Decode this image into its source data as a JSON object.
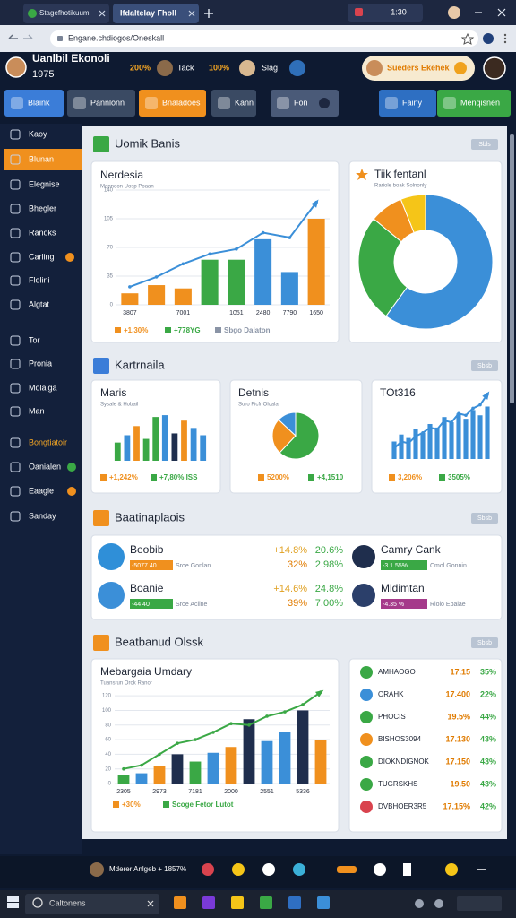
{
  "browser": {
    "tabs": [
      "Stagefhotikuum",
      "Ifdaltelay Fholl"
    ],
    "clock": "1:30",
    "url": "Engane.chdiogos/Oneskall"
  },
  "header": {
    "name": "Uanlbil Ekonoli",
    "year": "1975",
    "stats": [
      "200%",
      "Tack",
      "100%",
      "Slag"
    ],
    "profile": "Sueders Ekehek"
  },
  "toolbar": [
    "Blaink",
    "Pannlonn",
    "Bnaladoes",
    "Kann",
    "Fon",
    "Fainy",
    "Menqisnen"
  ],
  "sidebar": [
    "Kaoy",
    "Blunan",
    "Elegnise",
    "Bhegler",
    "Ranoks",
    "Carling",
    "Flolini",
    "Algtat",
    "Tor",
    "Pronia",
    "Molalga",
    "Man",
    "Bongtiatoir",
    "Oanialen",
    "Eaagle",
    "Sanday"
  ],
  "sections": [
    {
      "title": "Uomik Banis",
      "badge": "Sbls",
      "charts": [
        {
          "type": "bar-line",
          "title": "Nerdesia",
          "subtitle": "Mannoon Uosp Poaan",
          "categories": [
            "3807",
            null,
            "7001",
            null,
            "1051",
            "2480",
            "7790",
            "1650"
          ],
          "series": [
            {
              "colors": [
                "#f0901e",
                "#f0901e",
                "#f0901e",
                "#3aa845",
                "#3aa845",
                "#3b8fd8",
                "#3b8fd8",
                "#f0901e"
              ],
              "values": [
                14,
                24,
                20,
                55,
                55,
                80,
                40,
                105
              ]
            },
            {
              "color": "#3b8fd8",
              "values": [
                22,
                34,
                50,
                62,
                68,
                88,
                82,
                125
              ]
            }
          ],
          "ylim": [
            0,
            140
          ],
          "yticks": [
            0,
            35,
            70,
            105,
            140
          ],
          "notes": [
            "+1.30%",
            "+778YG",
            "Sbgo Dalaton"
          ]
        },
        {
          "type": "donut",
          "title": "Tiik fentanl",
          "subtitle": "Rariole boak Solnonly",
          "values": [
            60,
            26,
            8,
            6
          ],
          "colors": [
            "#3b8fd8",
            "#3aa845",
            "#f0901e",
            "#f5c518"
          ]
        }
      ]
    },
    {
      "title": "Kartrnaila",
      "badge": "Sbsb",
      "charts": [
        {
          "type": "bar",
          "title": "Maris",
          "subtitle": "Sysale & Hobail",
          "series": [
            {
              "colors": [
                "#3aa845",
                "#3b8fd8",
                "#f0901e",
                "#3aa845",
                "#3aa845",
                "#3b8fd8",
                "#1f2e4d",
                "#f0901e",
                "#3b8fd8",
                "#3b8fd8"
              ],
              "values": [
                20,
                28,
                38,
                24,
                48,
                50,
                30,
                44,
                36,
                28
              ]
            }
          ],
          "ylim": [
            0,
            55
          ],
          "notes": [
            "+1,242%",
            "+7,80% ISS"
          ]
        },
        {
          "type": "pie",
          "title": "Detnis",
          "subtitle": "Soro Ficfr Olcalal",
          "values": [
            62,
            25,
            13
          ],
          "colors": [
            "#3aa845",
            "#f0901e",
            "#3b8fd8"
          ],
          "notes": [
            "5200%",
            "+4,1510"
          ]
        },
        {
          "type": "bar-line",
          "title": "TOt316",
          "series": [
            {
              "color": "#3b8fd8",
              "values": [
                20,
                28,
                24,
                34,
                30,
                40,
                36,
                48,
                42,
                52,
                46,
                56,
                50,
                60
              ]
            },
            {
              "color": "#3b8fd8",
              "values": [
                12,
                20,
                18,
                26,
                30,
                36,
                34,
                44,
                42,
                52,
                50,
                58,
                62,
                74
              ]
            }
          ],
          "ylim": [
            0,
            80
          ],
          "notes": [
            "3,206%",
            "3505%"
          ]
        }
      ]
    },
    {
      "title": "Baatinaplaois",
      "badge": "Sbsb",
      "rows": [
        {
          "left": {
            "name": "Beobib",
            "tag": "-5077 40",
            "note": "Sroe Gonlan"
          },
          "values": [
            [
              "+14.8%",
              "20.6%"
            ],
            [
              "32%",
              "2.98%"
            ]
          ],
          "right": {
            "name": "Camry Cank",
            "tag": "-3 1.55%",
            "note": "Cmol Gonnin"
          }
        },
        {
          "left": {
            "name": "Boanie",
            "tag": "-44 40",
            "note": "Sroe Acline"
          },
          "values": [
            [
              "+14.6%",
              "24.8%"
            ],
            [
              "39%",
              "7.00%"
            ]
          ],
          "right": {
            "name": "Mldimtan",
            "tag": "-4.35 %",
            "note": "Rlolo Ebalae"
          }
        }
      ]
    },
    {
      "title": "Beatbanud Olssk",
      "badge": "Sbsb",
      "charts": [
        {
          "type": "bar-line",
          "title": "Mebargaia Umdary",
          "subtitle": "Tuansrun Orok Ranor",
          "categories": [
            "2305",
            null,
            "2973",
            null,
            "7181",
            null,
            "2000",
            null,
            "2551",
            null,
            "5336",
            null
          ],
          "series": [
            {
              "colors": [
                "#3aa845",
                "#3b8fd8",
                "#f0901e",
                "#1f2e4d",
                "#3aa845",
                "#3b8fd8",
                "#f0901e",
                "#1f2e4d",
                "#3b8fd8",
                "#3b8fd8",
                "#1f2e4d",
                "#f0901e"
              ],
              "values": [
                12,
                14,
                24,
                40,
                30,
                42,
                50,
                88,
                58,
                70,
                100,
                60
              ]
            },
            {
              "color": "#3aa845",
              "values": [
                20,
                25,
                40,
                55,
                60,
                70,
                82,
                80,
                92,
                98,
                108,
                125
              ]
            }
          ],
          "ylim": [
            0,
            130
          ],
          "yticks": [
            0,
            20,
            40,
            60,
            80,
            100,
            120
          ],
          "notes": [
            "+30%",
            "Scoge Fetor Lutot"
          ]
        }
      ],
      "list": [
        {
          "name": "AMHAOGO",
          "v1": "17.15",
          "v2": "35%"
        },
        {
          "name": "ORAHK",
          "v1": "17.400",
          "v2": "22%"
        },
        {
          "name": "PHOCIS",
          "v1": "19.5%",
          "v2": "44%"
        },
        {
          "name": "BISHOS3094",
          "v1": "17.130",
          "v2": "43%"
        },
        {
          "name": "DIOKNDIGNOK",
          "v1": "17.150",
          "v2": "43%"
        },
        {
          "name": "TUGRSKHS",
          "v1": "19.50",
          "v2": "43%"
        },
        {
          "name": "DVBHOER3R5",
          "v1": "17.15%",
          "v2": "42%"
        }
      ]
    }
  ],
  "appbar": {
    "label": "Mderer Anlgeb + 1857%"
  },
  "taskbar": {
    "search": "Caltonens"
  }
}
